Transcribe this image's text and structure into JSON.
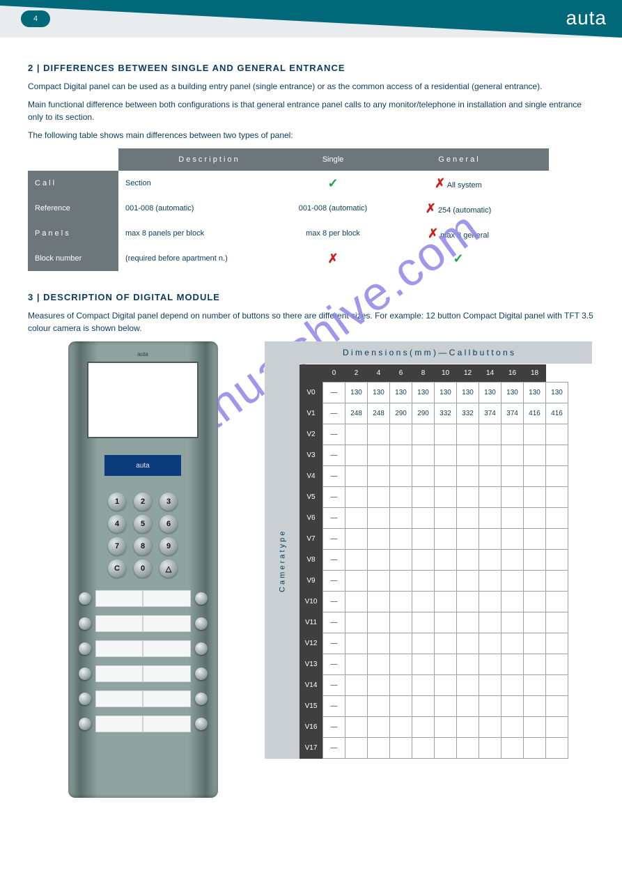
{
  "header": {
    "page_pill": "4",
    "brand": "auta",
    "bg_color": "#e8ecee",
    "wedge_color": "#006878",
    "brand_color": "#ffffff"
  },
  "section1": {
    "title": "2 | DIFFERENCES BETWEEN SINGLE AND GENERAL ENTRANCE",
    "p1": "Compact Digital panel can be used as a building entry panel (single entrance) or as the common access of a residential (general entrance).",
    "p2": "Main functional difference between both configurations is that general entrance panel calls to any monitor/telephone in installation and single entrance only to its section.",
    "p3": "The following table shows main differences between two types of panel:"
  },
  "cmp_table": {
    "headers": [
      "",
      "D e s c r i p t i o n",
      "Single",
      "G e n e r a l"
    ],
    "rows": [
      {
        "label": "C a l l",
        "desc": "Section",
        "single": "check",
        "general": "cross",
        "general_text": "All system"
      },
      {
        "label": "Reference",
        "desc": "001-008 (automatic)",
        "single": "text",
        "single_text": "001-008 (automatic)",
        "general": "cross",
        "general_text": "254 (automatic)"
      },
      {
        "label": "P a n e l s",
        "desc": "max 8 panels per block",
        "single": "text",
        "single_text": "max 8 per block",
        "general": "cross",
        "general_text": "max 8 general"
      },
      {
        "label": "Block number",
        "desc": "(required before apartment n.)",
        "single": "cross",
        "general": "check"
      }
    ]
  },
  "section2": {
    "title": "3 | DESCRIPTION OF DIGITAL MODULE",
    "text": "Measures of Compact Digital panel depend on number of buttons so there are different sizes. For example: 12 button Compact Digital panel with TFT 3.5 colour camera is shown below."
  },
  "panel": {
    "brand_small": "auta",
    "lcd_text": "auta",
    "keys": [
      [
        "1",
        "2",
        "3"
      ],
      [
        "4",
        "5",
        "6"
      ],
      [
        "7",
        "8",
        "9"
      ],
      [
        "C",
        "0",
        "△"
      ]
    ],
    "button_rows": 6
  },
  "dimensions": {
    "header": "D i m e n s i o n s   ( m m )   —   C a l l   b u t t o n s",
    "side_label": "C a m e r a   t y p e",
    "cols": [
      "",
      "0",
      "2",
      "4",
      "6",
      "8",
      "10",
      "12",
      "14",
      "16",
      "18"
    ],
    "row_headers": [
      "V0",
      "V1",
      "V2",
      "V3",
      "V4",
      "V5",
      "V6",
      "V7",
      "V8",
      "V9",
      "V10",
      "V11",
      "V12",
      "V13",
      "V14",
      "V15",
      "V16",
      "V17"
    ],
    "rows": [
      [
        "—",
        "130",
        "130",
        "130",
        "130",
        "130",
        "130",
        "130",
        "130",
        "130",
        "130"
      ],
      [
        "—",
        "248",
        "248",
        "290",
        "290",
        "332",
        "332",
        "374",
        "374",
        "416",
        "416"
      ],
      [
        "—",
        "",
        "",
        "",
        "",
        "",
        "",
        "",
        "",
        "",
        ""
      ],
      [
        "—",
        "",
        "",
        "",
        "",
        "",
        "",
        "",
        "",
        "",
        ""
      ],
      [
        "—",
        "",
        "",
        "",
        "",
        "",
        "",
        "",
        "",
        "",
        ""
      ],
      [
        "—",
        "",
        "",
        "",
        "",
        "",
        "",
        "",
        "",
        "",
        ""
      ],
      [
        "—",
        "",
        "",
        "",
        "",
        "",
        "",
        "",
        "",
        "",
        ""
      ],
      [
        "—",
        "",
        "",
        "",
        "",
        "",
        "",
        "",
        "",
        "",
        ""
      ],
      [
        "—",
        "",
        "",
        "",
        "",
        "",
        "",
        "",
        "",
        "",
        ""
      ],
      [
        "—",
        "",
        "",
        "",
        "",
        "",
        "",
        "",
        "",
        "",
        ""
      ],
      [
        "—",
        "",
        "",
        "",
        "",
        "",
        "",
        "",
        "",
        "",
        ""
      ],
      [
        "—",
        "",
        "",
        "",
        "",
        "",
        "",
        "",
        "",
        "",
        ""
      ],
      [
        "—",
        "",
        "",
        "",
        "",
        "",
        "",
        "",
        "",
        "",
        ""
      ],
      [
        "—",
        "",
        "",
        "",
        "",
        "",
        "",
        "",
        "",
        "",
        ""
      ],
      [
        "—",
        "",
        "",
        "",
        "",
        "",
        "",
        "",
        "",
        "",
        ""
      ],
      [
        "—",
        "",
        "",
        "",
        "",
        "",
        "",
        "",
        "",
        "",
        ""
      ],
      [
        "—",
        "",
        "",
        "",
        "",
        "",
        "",
        "",
        "",
        "",
        ""
      ],
      [
        "—",
        "",
        "",
        "",
        "",
        "",
        "",
        "",
        "",
        "",
        ""
      ]
    ]
  },
  "watermark": "manualshive.com"
}
